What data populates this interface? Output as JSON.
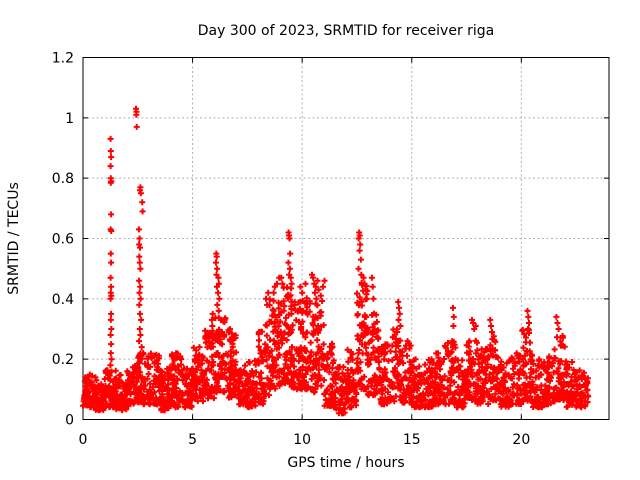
{
  "page": {
    "background": "#ffffff"
  },
  "chart_data": {
    "type": "scatter",
    "title": "Day 300 of 2023, SRMTID for receiver riga",
    "xlabel": "GPS time / hours",
    "ylabel": "SRMTID / TECUs",
    "xlim": [
      0,
      24
    ],
    "ylim": [
      0,
      1.2
    ],
    "xtick_values": [
      0,
      5,
      10,
      15,
      20
    ],
    "xtick_labels": [
      "0",
      "5",
      "10",
      "15",
      "20"
    ],
    "ytick_values": [
      0,
      0.2,
      0.4,
      0.6,
      0.8,
      1,
      1.2
    ],
    "ytick_labels": [
      "0",
      "0.2",
      "0.4",
      "0.6",
      "0.8",
      "1",
      "1.2"
    ],
    "grid": true,
    "legend": "none",
    "marker": "plus",
    "marker_color": "#ff0000",
    "grid_color": "#b0b0b0",
    "axis_color": "#000000",
    "x_data_start": 0.0,
    "x_data_end": 23.05,
    "y_data_max": 1.03,
    "series": [
      {
        "peak_points": [
          [
            1.26,
            0.93
          ],
          [
            1.27,
            0.89
          ],
          [
            1.28,
            0.87
          ],
          [
            1.26,
            0.84
          ],
          [
            1.27,
            0.8
          ],
          [
            1.29,
            0.79
          ],
          [
            1.27,
            0.785
          ],
          [
            1.28,
            0.68
          ],
          [
            1.26,
            0.63
          ],
          [
            1.29,
            0.625
          ],
          [
            1.27,
            0.55
          ],
          [
            1.28,
            0.52
          ],
          [
            1.26,
            0.47
          ],
          [
            1.28,
            0.44
          ],
          [
            1.27,
            0.42
          ],
          [
            1.29,
            0.41
          ],
          [
            1.26,
            0.4
          ],
          [
            1.28,
            0.35
          ],
          [
            1.27,
            0.33
          ],
          [
            1.29,
            0.3
          ],
          [
            1.26,
            0.28
          ],
          [
            1.28,
            0.25
          ],
          [
            1.27,
            0.22
          ],
          [
            1.3,
            0.2
          ],
          [
            1.25,
            0.18
          ],
          [
            2.42,
            1.03
          ],
          [
            2.44,
            1.02
          ],
          [
            2.43,
            1.01
          ],
          [
            2.45,
            0.97
          ],
          [
            2.62,
            0.77
          ],
          [
            2.6,
            0.76
          ],
          [
            2.64,
            0.75
          ],
          [
            2.7,
            0.72
          ],
          [
            2.72,
            0.69
          ],
          [
            2.55,
            0.63
          ],
          [
            2.58,
            0.6
          ],
          [
            2.56,
            0.58
          ],
          [
            2.6,
            0.57
          ],
          [
            2.57,
            0.54
          ],
          [
            2.59,
            0.52
          ],
          [
            2.62,
            0.5
          ],
          [
            2.56,
            0.46
          ],
          [
            2.61,
            0.44
          ],
          [
            2.58,
            0.42
          ],
          [
            2.63,
            0.4
          ],
          [
            2.57,
            0.38
          ],
          [
            2.6,
            0.35
          ],
          [
            2.65,
            0.33
          ],
          [
            2.59,
            0.3
          ],
          [
            2.62,
            0.28
          ],
          [
            2.56,
            0.26
          ],
          [
            2.68,
            0.24
          ],
          [
            2.74,
            0.22
          ],
          [
            5.88,
            0.33
          ],
          [
            5.92,
            0.35
          ],
          [
            5.9,
            0.31
          ],
          [
            6.08,
            0.55
          ],
          [
            6.1,
            0.54
          ],
          [
            6.07,
            0.52
          ],
          [
            6.12,
            0.5
          ],
          [
            6.09,
            0.48
          ],
          [
            6.18,
            0.47
          ],
          [
            6.2,
            0.45
          ],
          [
            6.11,
            0.44
          ],
          [
            6.16,
            0.42
          ],
          [
            6.22,
            0.4
          ],
          [
            6.13,
            0.38
          ],
          [
            6.19,
            0.36
          ],
          [
            8.35,
            0.4
          ],
          [
            8.4,
            0.38
          ],
          [
            8.45,
            0.42
          ],
          [
            8.7,
            0.42
          ],
          [
            8.75,
            0.44
          ],
          [
            8.85,
            0.45
          ],
          [
            8.95,
            0.47
          ],
          [
            9.05,
            0.47
          ],
          [
            9.1,
            0.45
          ],
          [
            9.38,
            0.62
          ],
          [
            9.4,
            0.61
          ],
          [
            9.42,
            0.6
          ],
          [
            9.45,
            0.55
          ],
          [
            9.37,
            0.52
          ],
          [
            9.44,
            0.5
          ],
          [
            9.41,
            0.48
          ],
          [
            9.48,
            0.47
          ],
          [
            9.52,
            0.45
          ],
          [
            9.92,
            0.44
          ],
          [
            10.0,
            0.42
          ],
          [
            10.15,
            0.45
          ],
          [
            10.45,
            0.48
          ],
          [
            10.5,
            0.47
          ],
          [
            10.55,
            0.45
          ],
          [
            10.62,
            0.44
          ],
          [
            10.7,
            0.46
          ],
          [
            10.58,
            0.42
          ],
          [
            10.75,
            0.43
          ],
          [
            10.85,
            0.41
          ],
          [
            10.95,
            0.44
          ],
          [
            11.02,
            0.46
          ],
          [
            10.65,
            0.4
          ],
          [
            12.6,
            0.62
          ],
          [
            12.63,
            0.61
          ],
          [
            12.58,
            0.6
          ],
          [
            12.65,
            0.58
          ],
          [
            12.62,
            0.56
          ],
          [
            12.68,
            0.53
          ],
          [
            12.57,
            0.5
          ],
          [
            12.7,
            0.48
          ],
          [
            12.8,
            0.47
          ],
          [
            12.85,
            0.45
          ],
          [
            12.9,
            0.43
          ],
          [
            12.95,
            0.4
          ],
          [
            13.18,
            0.47
          ],
          [
            13.22,
            0.44
          ],
          [
            13.25,
            0.4
          ],
          [
            14.38,
            0.39
          ],
          [
            14.42,
            0.37
          ],
          [
            14.45,
            0.35
          ],
          [
            14.4,
            0.33
          ],
          [
            14.48,
            0.31
          ],
          [
            16.88,
            0.37
          ],
          [
            16.92,
            0.34
          ],
          [
            16.9,
            0.31
          ],
          [
            17.75,
            0.33
          ],
          [
            17.8,
            0.32
          ],
          [
            17.85,
            0.3
          ],
          [
            17.92,
            0.31
          ],
          [
            18.58,
            0.33
          ],
          [
            18.62,
            0.31
          ],
          [
            18.66,
            0.29
          ],
          [
            20.28,
            0.36
          ],
          [
            20.32,
            0.34
          ],
          [
            20.35,
            0.32
          ],
          [
            20.3,
            0.3
          ],
          [
            21.6,
            0.34
          ],
          [
            21.65,
            0.32
          ],
          [
            21.7,
            0.3
          ]
        ],
        "density_bins_format": [
          "x_start",
          "x_end",
          "y_min",
          "y_max",
          "count"
        ],
        "density_bins": [
          [
            0.0,
            0.5,
            0.04,
            0.16,
            55
          ],
          [
            0.5,
            1.0,
            0.03,
            0.14,
            55
          ],
          [
            1.0,
            1.5,
            0.04,
            0.17,
            58
          ],
          [
            1.5,
            2.0,
            0.03,
            0.15,
            55
          ],
          [
            2.0,
            2.5,
            0.05,
            0.18,
            58
          ],
          [
            2.5,
            3.0,
            0.05,
            0.22,
            60
          ],
          [
            3.0,
            3.5,
            0.05,
            0.22,
            58
          ],
          [
            3.5,
            4.0,
            0.03,
            0.18,
            55
          ],
          [
            4.0,
            4.5,
            0.04,
            0.22,
            58
          ],
          [
            4.5,
            5.0,
            0.04,
            0.18,
            55
          ],
          [
            5.0,
            5.5,
            0.06,
            0.24,
            58
          ],
          [
            5.5,
            6.0,
            0.07,
            0.3,
            60
          ],
          [
            6.0,
            6.5,
            0.09,
            0.34,
            60
          ],
          [
            6.5,
            7.0,
            0.07,
            0.3,
            58
          ],
          [
            7.0,
            7.5,
            0.05,
            0.22,
            55
          ],
          [
            7.5,
            8.0,
            0.04,
            0.2,
            55
          ],
          [
            8.0,
            8.5,
            0.05,
            0.32,
            58
          ],
          [
            8.5,
            9.0,
            0.1,
            0.4,
            62
          ],
          [
            9.0,
            9.5,
            0.12,
            0.45,
            65
          ],
          [
            9.5,
            10.0,
            0.1,
            0.4,
            62
          ],
          [
            10.0,
            10.5,
            0.1,
            0.42,
            62
          ],
          [
            10.5,
            11.0,
            0.09,
            0.4,
            62
          ],
          [
            11.0,
            11.5,
            0.04,
            0.26,
            55
          ],
          [
            11.5,
            12.0,
            0.02,
            0.18,
            55
          ],
          [
            12.0,
            12.5,
            0.04,
            0.24,
            58
          ],
          [
            12.5,
            13.0,
            0.1,
            0.46,
            65
          ],
          [
            13.0,
            13.5,
            0.08,
            0.36,
            60
          ],
          [
            13.5,
            14.0,
            0.05,
            0.25,
            55
          ],
          [
            14.0,
            14.5,
            0.06,
            0.3,
            58
          ],
          [
            14.5,
            15.0,
            0.05,
            0.26,
            55
          ],
          [
            15.0,
            15.5,
            0.04,
            0.2,
            55
          ],
          [
            15.5,
            16.0,
            0.04,
            0.2,
            52
          ],
          [
            16.0,
            16.5,
            0.05,
            0.22,
            55
          ],
          [
            16.5,
            17.0,
            0.05,
            0.26,
            55
          ],
          [
            17.0,
            17.5,
            0.04,
            0.2,
            52
          ],
          [
            17.5,
            18.0,
            0.06,
            0.28,
            58
          ],
          [
            18.0,
            18.5,
            0.05,
            0.24,
            55
          ],
          [
            18.5,
            19.0,
            0.06,
            0.28,
            55
          ],
          [
            19.0,
            19.5,
            0.04,
            0.2,
            52
          ],
          [
            19.5,
            20.0,
            0.05,
            0.22,
            52
          ],
          [
            20.0,
            20.5,
            0.06,
            0.3,
            58
          ],
          [
            20.5,
            21.0,
            0.04,
            0.2,
            52
          ],
          [
            21.0,
            21.5,
            0.05,
            0.22,
            52
          ],
          [
            21.5,
            22.0,
            0.06,
            0.28,
            55
          ],
          [
            22.0,
            22.5,
            0.04,
            0.2,
            52
          ],
          [
            22.5,
            23.05,
            0.04,
            0.18,
            50
          ]
        ]
      }
    ]
  }
}
